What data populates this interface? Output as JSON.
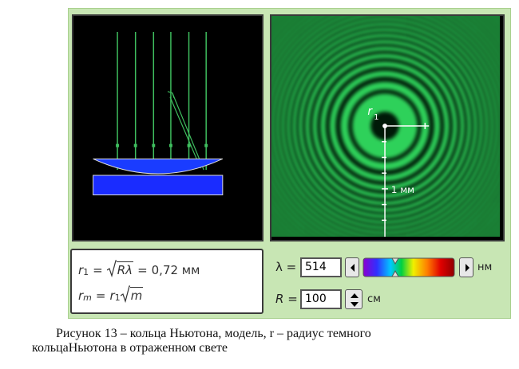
{
  "formulas": {
    "first": {
      "symbol": "r",
      "index": "1",
      "equals": "=",
      "radicand": "Rλ",
      "result": "0,72 мм"
    },
    "second": {
      "symbol": "r",
      "index": "m",
      "equals": "=",
      "factor_symbol": "r",
      "factor_index": "1",
      "radicand": "m"
    }
  },
  "rings_view": {
    "radius_symbol": "r",
    "radius_index": "1",
    "scale_label": "1 мм"
  },
  "controls": {
    "wavelength": {
      "label": "λ =",
      "value": "514",
      "unit": "нм"
    },
    "curvature": {
      "label": "R =",
      "value": "100",
      "unit": "см"
    }
  },
  "caption": {
    "lines": [
      "Рисунок 13 – кольца Ньютона, модель, r – радиус темного",
      "кольцаНьютона в отраженном свете"
    ]
  }
}
